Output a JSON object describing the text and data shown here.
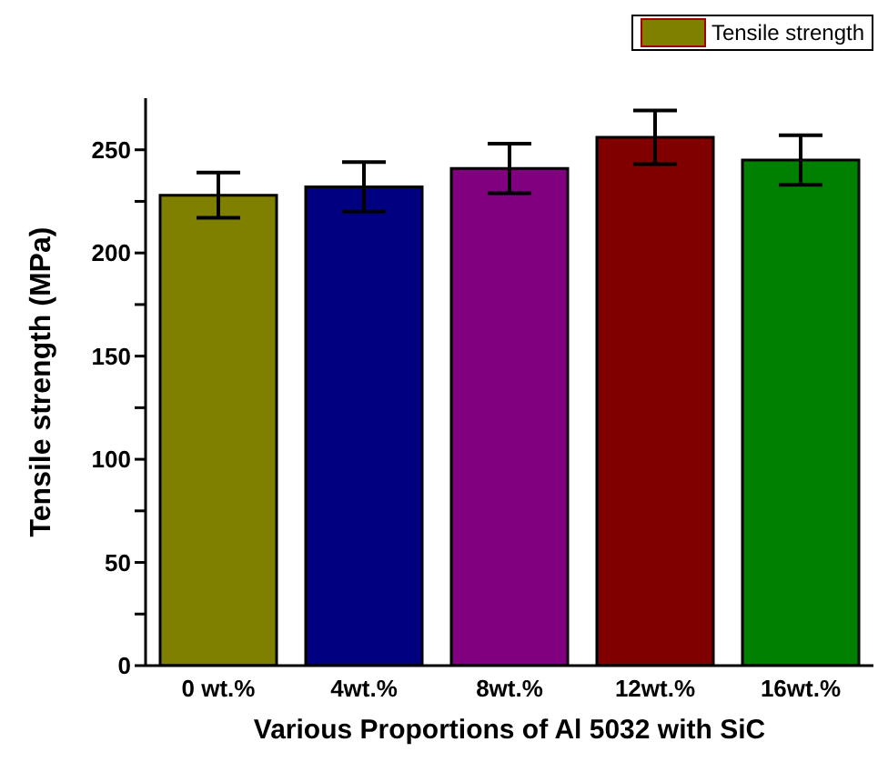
{
  "chart_data": {
    "type": "bar",
    "xlabel": "Various Proportions of Al 5032 with SiC",
    "ylabel": "Tensile strength (MPa)",
    "categories": [
      "0 wt.%",
      "4wt.%",
      "8wt.%",
      "12wt.%",
      "16wt.%"
    ],
    "series": [
      {
        "name": "Tensile strength",
        "colors": [
          "#808000",
          "#000080",
          "#800080",
          "#800000",
          "#008000"
        ],
        "values": [
          228,
          232,
          241,
          256,
          245
        ],
        "errors": [
          11,
          12,
          12,
          13,
          12
        ]
      }
    ],
    "ylim": [
      0,
      275
    ],
    "yticks": [
      0,
      {
        "value": 25,
        "label": null
      },
      50,
      {
        "value": 75,
        "label": null
      },
      100,
      {
        "value": 125,
        "label": null
      },
      150,
      {
        "value": 175,
        "label": null
      },
      200,
      {
        "value": 225,
        "label": null
      },
      250
    ],
    "grid": false,
    "legend": "top right"
  }
}
